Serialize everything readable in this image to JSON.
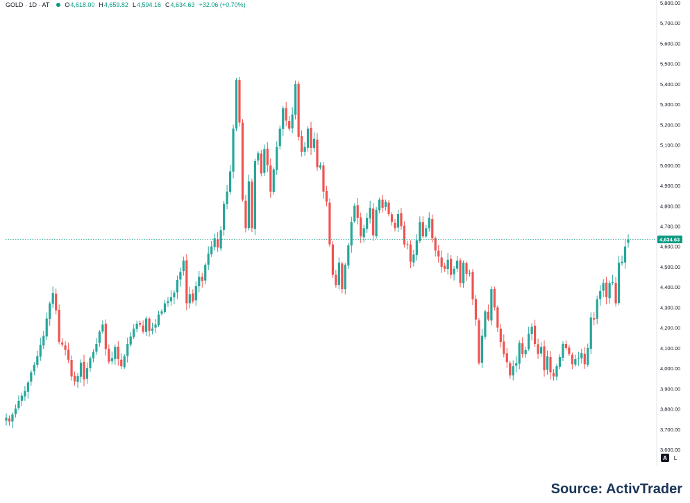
{
  "header": {
    "symbol": "GOLD · 1D · AT",
    "open_label": "O",
    "open": "4,618.00",
    "high_label": "H",
    "high": "4,659.82",
    "low_label": "L",
    "low": "4,594.16",
    "close_label": "C",
    "close": "4,634.63",
    "change": "+32.06 (+0.70%)"
  },
  "controls": {
    "auto_scale": "A",
    "log_scale": "L"
  },
  "source": "Source: ActivTrader",
  "colors": {
    "up": "#26a69a",
    "down": "#ef5350",
    "text_green": "#089981",
    "price_line": "#089981"
  },
  "chart_data": {
    "type": "candlestick",
    "ylim": [
      3600,
      5800
    ],
    "y_ticks": [
      "5,800.00",
      "5,700.00",
      "5,600.00",
      "5,500.00",
      "5,400.00",
      "5,300.00",
      "5,200.00",
      "5,100.00",
      "5,000.00",
      "4,900.00",
      "4,800.00",
      "4,700.00",
      "4,600.00",
      "4,500.00",
      "4,400.00",
      "4,300.00",
      "4,200.00",
      "4,100.00",
      "4,000.00",
      "3,900.00",
      "3,800.00",
      "3,700.00",
      "3,600.00"
    ],
    "last_price": 4634.63,
    "last_price_label": "4,634.63",
    "grid": false,
    "close_path": [
      3757,
      3738,
      3773,
      3802,
      3840,
      3865,
      3888,
      3930,
      3980,
      4017,
      4060,
      4115,
      4160,
      4245,
      4320,
      4370,
      4285,
      4130,
      4117,
      4090,
      4042,
      3960,
      3935,
      3962,
      4028,
      3945,
      4000,
      4050,
      4080,
      4120,
      4180,
      4215,
      4095,
      4032,
      4050,
      4105,
      4045,
      4010,
      4060,
      4120,
      4156,
      4195,
      4220,
      4215,
      4180,
      4245,
      4185,
      4196,
      4215,
      4265,
      4280,
      4320,
      4330,
      4350,
      4372,
      4435,
      4475,
      4530,
      4320,
      4365,
      4330,
      4405,
      4450,
      4430,
      4510,
      4565,
      4600,
      4640,
      4595,
      4680,
      4810,
      4870,
      4970,
      5180,
      5420,
      5210,
      4830,
      4690,
      4920,
      4690,
      5020,
      5060,
      4960,
      5080,
      5000,
      4870,
      4980,
      5090,
      5180,
      5280,
      5220,
      5180,
      5250,
      5400,
      5140,
      5065,
      5090,
      5180,
      5085,
      5130,
      4990,
      5000,
      4870,
      4820,
      4610,
      4460,
      4410,
      4520,
      4390,
      4510,
      4605,
      4720,
      4800,
      4740,
      4650,
      4690,
      4740,
      4790,
      4655,
      4780,
      4830,
      4790,
      4820,
      4760,
      4720,
      4690,
      4760,
      4700,
      4610,
      4610,
      4525,
      4560,
      4630,
      4720,
      4650,
      4690,
      4740,
      4640,
      4580,
      4550,
      4500,
      4490,
      4535,
      4460,
      4490,
      4530,
      4420,
      4520,
      4465,
      4470,
      4340,
      4240,
      4025,
      4160,
      4280,
      4240,
      4390,
      4300,
      4200,
      4130,
      4070,
      4030,
      3965,
      4010,
      4025,
      4125,
      4070,
      4090,
      4170,
      4205,
      4120,
      4070,
      4105,
      3990,
      4060,
      3980,
      3960,
      4010,
      4055,
      4120,
      4100,
      4070,
      4020,
      4045,
      4050,
      4075,
      4020,
      4100,
      4250,
      4240,
      4340,
      4380,
      4420,
      4350,
      4420,
      4425,
      4320,
      4520,
      4525,
      4600,
      4634.63
    ]
  }
}
